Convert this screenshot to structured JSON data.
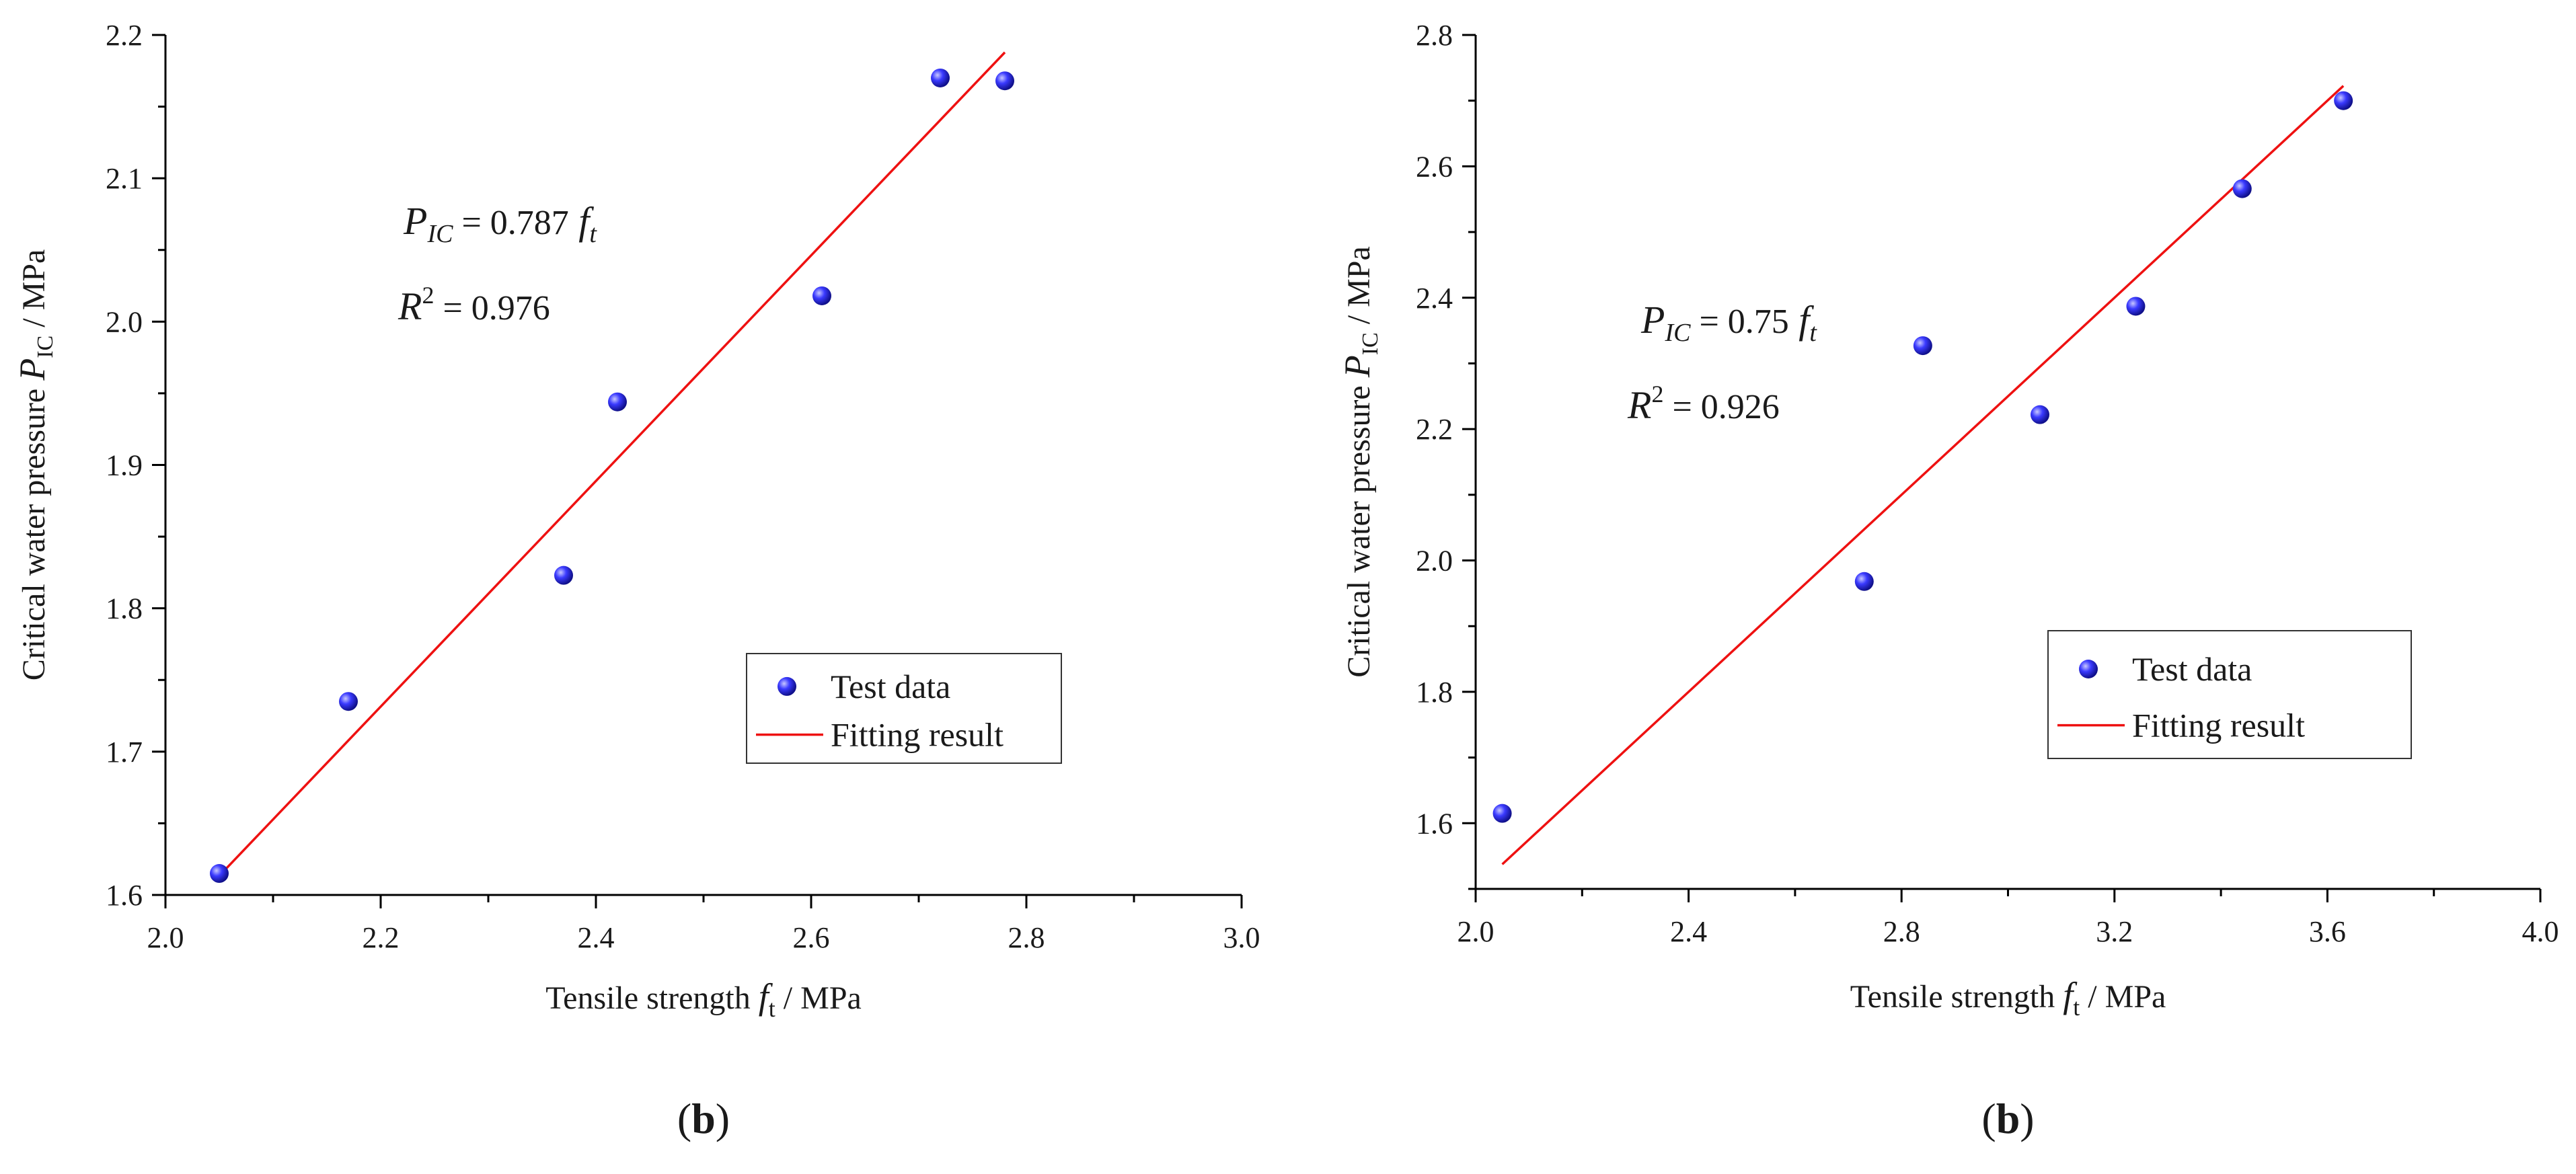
{
  "chart_data": [
    {
      "type": "scatter",
      "panel_label": "b",
      "panel_label_prefix": "(",
      "panel_label_suffix": ")",
      "xlabel": "Tensile strength",
      "xlabel_symbol": "f",
      "xlabel_subscript": "t",
      "xlabel_unit": " / MPa",
      "ylabel": "Critical water pressure",
      "ylabel_symbol": "P",
      "ylabel_subscript": "IC",
      "ylabel_unit": " / MPa",
      "xlim": [
        2.0,
        3.0
      ],
      "ylim": [
        1.6,
        2.2
      ],
      "xticks": [
        "2.0",
        "2.2",
        "2.4",
        "2.6",
        "2.8",
        "3.0"
      ],
      "yticks": [
        "1.6",
        "1.7",
        "1.8",
        "1.9",
        "2.0",
        "2.1",
        "2.2"
      ],
      "series": [
        {
          "name": "Test data",
          "kind": "scatter",
          "color": "#2222ee",
          "points": [
            {
              "x": 2.05,
              "y": 1.615
            },
            {
              "x": 2.17,
              "y": 1.735
            },
            {
              "x": 2.37,
              "y": 1.823
            },
            {
              "x": 2.42,
              "y": 1.944
            },
            {
              "x": 2.61,
              "y": 2.018
            },
            {
              "x": 2.72,
              "y": 2.17
            },
            {
              "x": 2.78,
              "y": 2.168
            }
          ]
        },
        {
          "name": "Fitting result",
          "kind": "line",
          "color": "#ee1111",
          "slope": 0.787,
          "x_range": [
            2.05,
            2.78
          ]
        }
      ],
      "equation": {
        "lhs": "P",
        "lhs_sub": "IC",
        "rhs_coef": " = 0.787",
        "rhs_var": "f",
        "rhs_sub": "t"
      },
      "r2": {
        "sym": "R",
        "sup": "2",
        "text": " = 0.976"
      },
      "legend_position": "lower-right"
    },
    {
      "type": "scatter",
      "panel_label": "b",
      "panel_label_prefix": "(",
      "panel_label_suffix": ")",
      "xlabel": "Tensile strength",
      "xlabel_symbol": "f",
      "xlabel_subscript": "t",
      "xlabel_unit": " / MPa",
      "ylabel": "Critical water pressure",
      "ylabel_symbol": "P",
      "ylabel_subscript": "IC",
      "ylabel_unit": " / MPa",
      "xlim": [
        2.0,
        4.0
      ],
      "ylim": [
        1.5,
        2.8
      ],
      "xticks": [
        "2.0",
        "2.4",
        "2.8",
        "3.2",
        "3.6",
        "4.0"
      ],
      "yticks": [
        "1.6",
        "1.8",
        "2.0",
        "2.2",
        "2.4",
        "2.6",
        "2.8"
      ],
      "series": [
        {
          "name": "Test data",
          "kind": "scatter",
          "color": "#2222ee",
          "points": [
            {
              "x": 2.05,
              "y": 1.615
            },
            {
              "x": 2.73,
              "y": 1.968
            },
            {
              "x": 2.84,
              "y": 2.327
            },
            {
              "x": 3.06,
              "y": 2.222
            },
            {
              "x": 3.24,
              "y": 2.387
            },
            {
              "x": 3.44,
              "y": 2.566
            },
            {
              "x": 3.63,
              "y": 2.7
            }
          ]
        },
        {
          "name": "Fitting result",
          "kind": "line",
          "color": "#ee1111",
          "slope": 0.75,
          "x_range": [
            2.05,
            3.63
          ]
        }
      ],
      "equation": {
        "lhs": "P",
        "lhs_sub": "IC",
        "rhs_coef": " = 0.75",
        "rhs_var": "f",
        "rhs_sub": "t"
      },
      "r2": {
        "sym": "R",
        "sup": "2",
        "text": " = 0.926"
      },
      "legend_position": "right"
    }
  ]
}
